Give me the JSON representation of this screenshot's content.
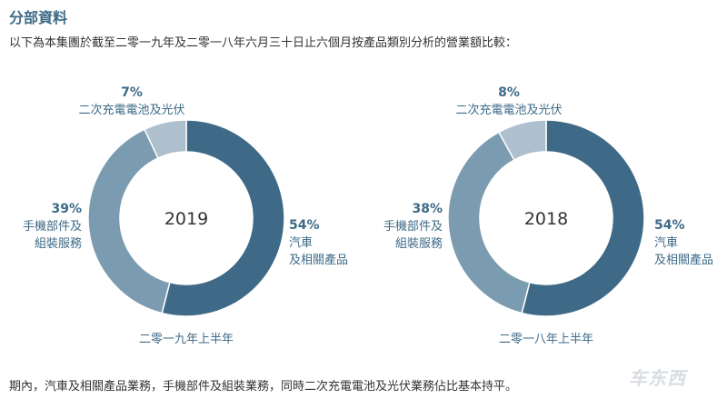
{
  "heading": "分部資料",
  "intro": "以下為本集團於截至二零一九年及二零一八年六月三十日止六個月按產品類別分析的營業額比較：",
  "footer": "期內，汽車及相關產品業務，手機部件及組裝業務，同時二次充電電池及光伏業務佔比基本持平。",
  "watermark": "车东西",
  "colors": {
    "auto": "#3e6a87",
    "handset": "#7b9bb0",
    "battery": "#aebfcd",
    "heading": "#3d6a87"
  },
  "chart_data": [
    {
      "type": "pie",
      "center_label": "2019",
      "caption": "二零一九年上半年",
      "slices": [
        {
          "key": "auto",
          "label_lines": [
            "汽車",
            "及相關產品"
          ],
          "pct_text": "54%",
          "value": 54,
          "color": "#3e6a87"
        },
        {
          "key": "handset",
          "label_lines": [
            "手機部件及",
            "組裝服務"
          ],
          "pct_text": "39%",
          "value": 39,
          "color": "#7b9bb0"
        },
        {
          "key": "battery",
          "label_lines": [
            "二次充電電池及光伏"
          ],
          "pct_text": "7%",
          "value": 7,
          "color": "#aebfcd"
        }
      ]
    },
    {
      "type": "pie",
      "center_label": "2018",
      "caption": "二零一八年上半年",
      "slices": [
        {
          "key": "auto",
          "label_lines": [
            "汽車",
            "及相關產品"
          ],
          "pct_text": "54%",
          "value": 54,
          "color": "#3e6a87"
        },
        {
          "key": "handset",
          "label_lines": [
            "手機部件及",
            "組裝服務"
          ],
          "pct_text": "38%",
          "value": 38,
          "color": "#7b9bb0"
        },
        {
          "key": "battery",
          "label_lines": [
            "二次充電電池及光伏"
          ],
          "pct_text": "8%",
          "value": 8,
          "color": "#aebfcd"
        }
      ]
    }
  ]
}
